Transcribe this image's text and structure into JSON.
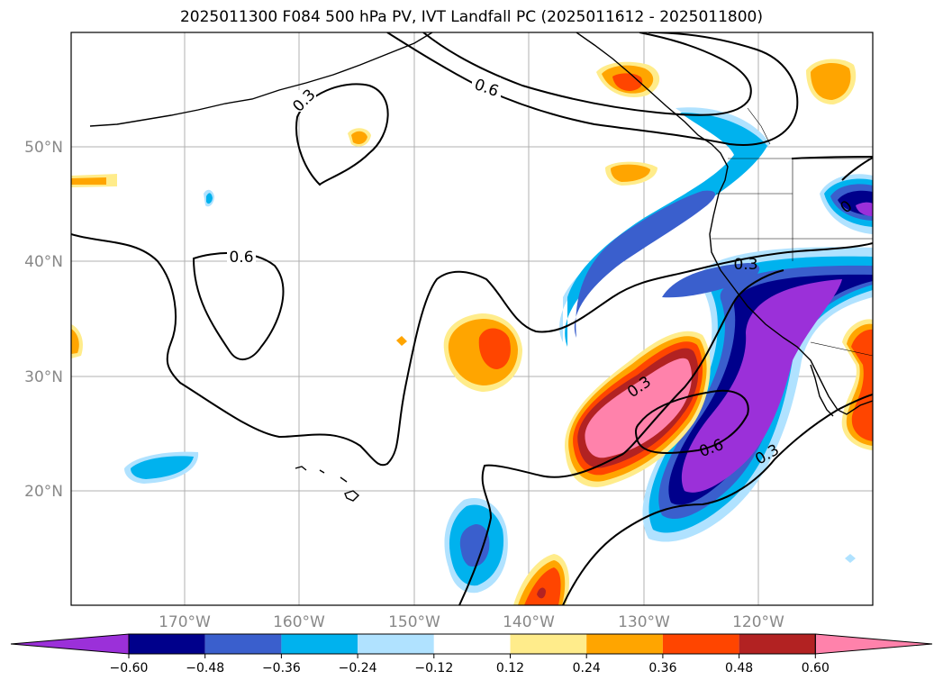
{
  "title": "2025011300 F084 500 hPa PV, IVT Landfall PC (2025011612 - 2025011800)",
  "lat_labels": [
    "50°N",
    "40°N",
    "30°N",
    "20°N"
  ],
  "lon_labels": [
    "170°W",
    "160°W",
    "150°W",
    "140°W",
    "130°W",
    "120°W"
  ],
  "contour_labels": [
    "0.3",
    "0.6",
    "0.6",
    "0.3",
    "0.3",
    "0.6",
    "0.3",
    "0"
  ],
  "colorbar": {
    "ticks": [
      "−0.60",
      "−0.48",
      "−0.36",
      "−0.24",
      "−0.12",
      "0.12",
      "0.24",
      "0.36",
      "0.48",
      "0.60"
    ],
    "colors": [
      "#9b30d9",
      "#00008b",
      "#3a5fcd",
      "#00b2ee",
      "#b0e2ff",
      "#ffffff",
      "#ffec8b",
      "#ffa500",
      "#ff4500",
      "#b22222",
      "#ff82ab"
    ]
  },
  "colors": {
    "neg_strong": "#9b30d9",
    "neg_2": "#00008b",
    "neg_3": "#3a5fcd",
    "neg_4": "#00b2ee",
    "neg_5": "#b0e2ff",
    "pos_1": "#ffec8b",
    "pos_2": "#ffa500",
    "pos_3": "#ff4500",
    "pos_4": "#b22222",
    "pos_5": "#ff82ab"
  }
}
